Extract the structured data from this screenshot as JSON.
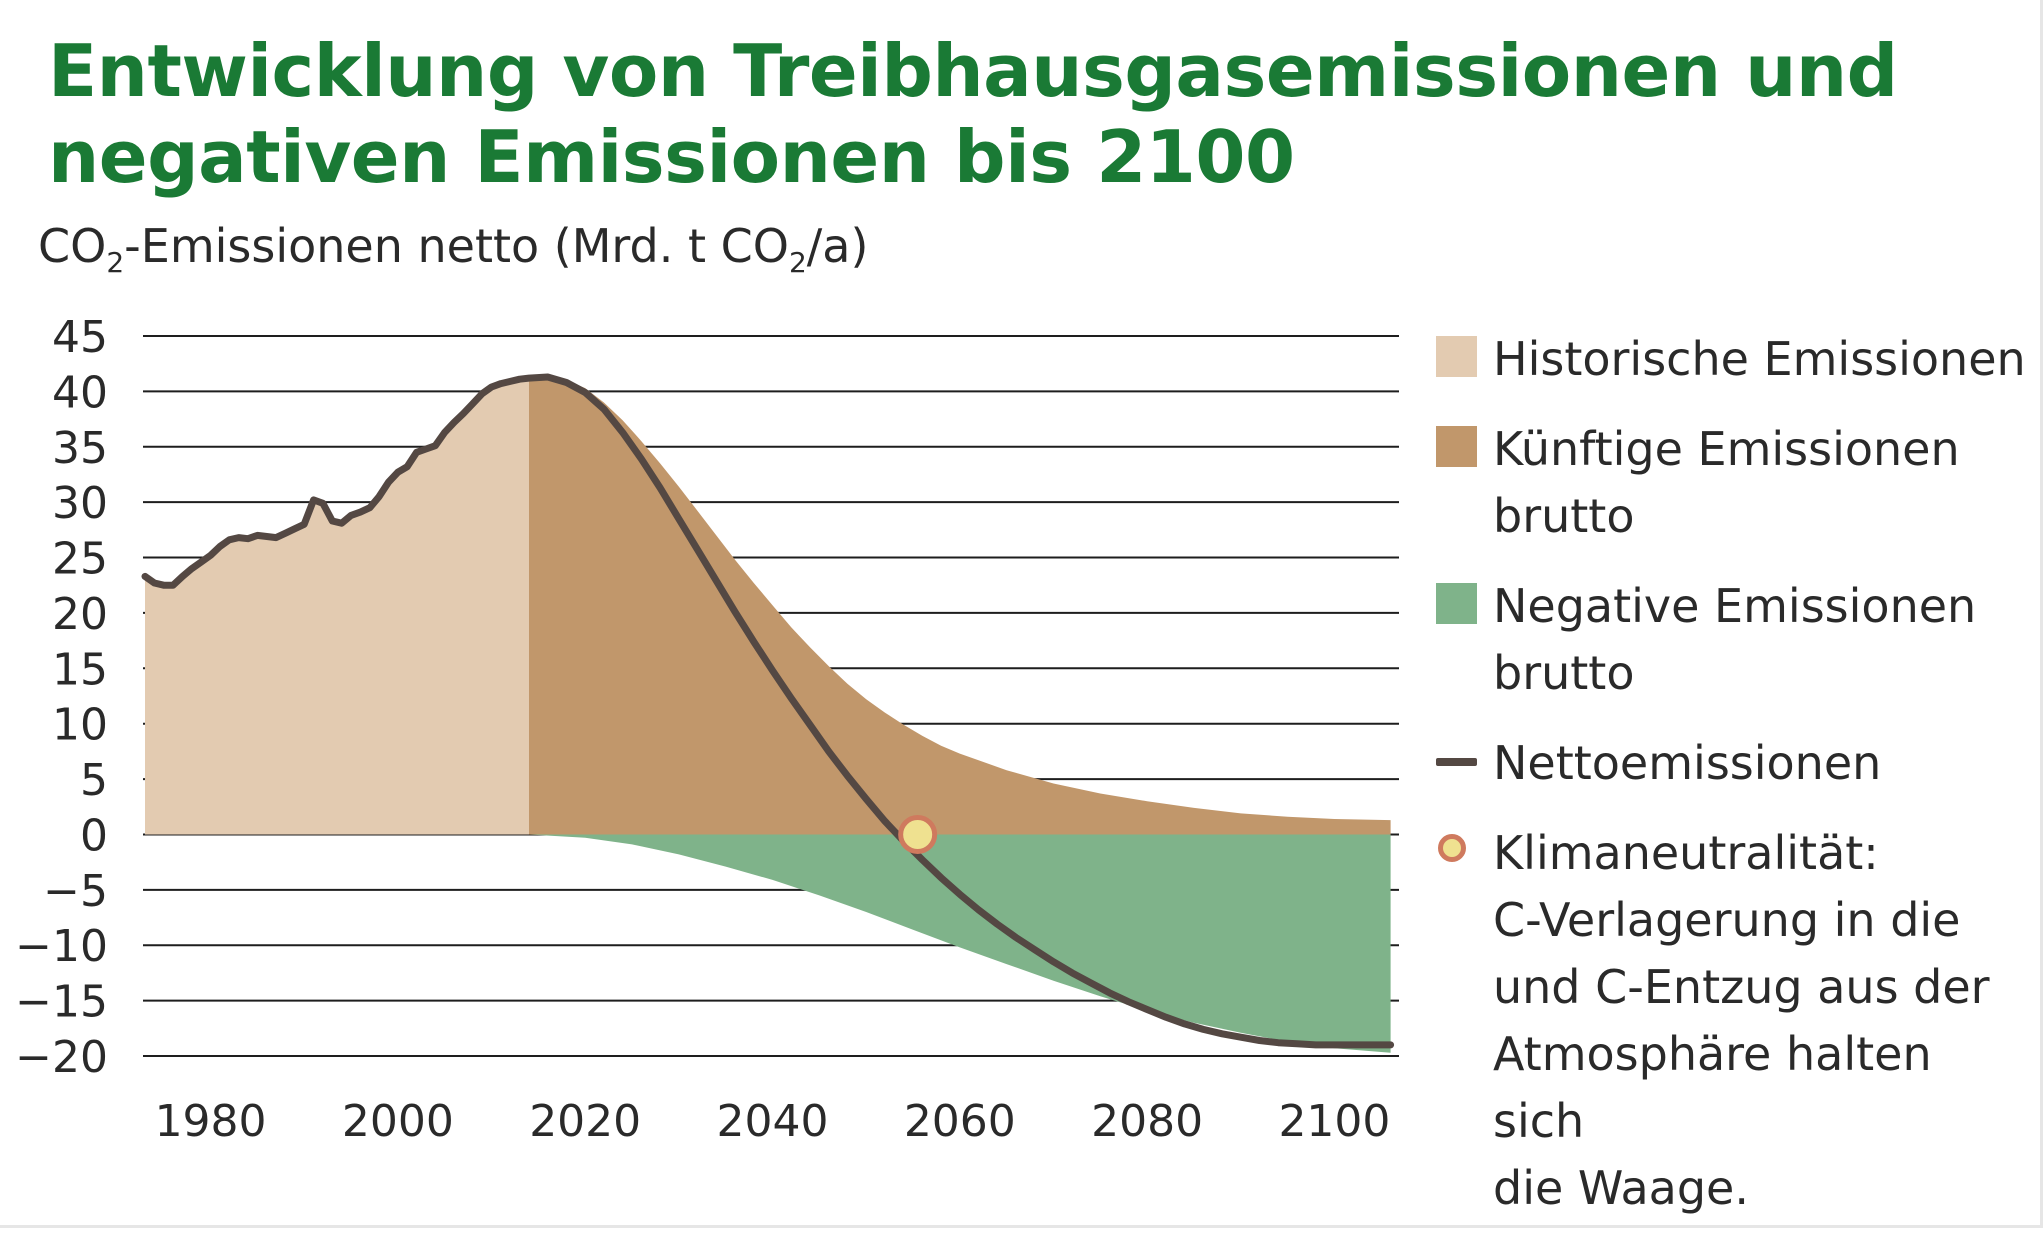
{
  "title": "Entwicklung von Treibhausgasemissionen und negativen Emissionen bis 2100",
  "y_axis_label": {
    "prefix": "CO",
    "sub1": "2",
    "middle": "-Emissionen netto (Mrd. t CO",
    "sub2": "2",
    "suffix": "/a)"
  },
  "legend": [
    {
      "label": "Historische Emissionen",
      "color": "#e3cbb1",
      "kind": "box"
    },
    {
      "label": "Künftige Emissionen\nbrutto",
      "color": "#c1976b",
      "kind": "box"
    },
    {
      "label": "Negative Emissionen\nbrutto",
      "color": "#7fb38a",
      "kind": "box"
    },
    {
      "label": "Nettoemissionen",
      "color": "#544843",
      "kind": "line"
    },
    {
      "label": "Klimaneutralität:\nC-Verlagerung in die\nund C-Entzug aus der\nAtmosphäre halten sich\ndie Waage.",
      "color": "#efe190",
      "kind": "dot"
    }
  ],
  "colors": {
    "title": "#1a7a35",
    "historical": "#e3cbb1",
    "future_gross": "#c1976b",
    "negative_gross": "#7fb38a",
    "net_line": "#544843",
    "neutral_fill": "#efe190",
    "neutral_stroke": "#cf7a5e",
    "grid": "#1e1e1e"
  },
  "chart_data": {
    "type": "area",
    "xlabel": "",
    "ylabel": "CO2-Emissionen netto (Mrd. t CO2/a)",
    "xlim": [
      1973,
      2107
    ],
    "ylim": [
      -20,
      45
    ],
    "x_ticks": [
      1980,
      2000,
      2020,
      2040,
      2060,
      2080,
      2100
    ],
    "y_ticks": [
      45,
      40,
      35,
      30,
      25,
      20,
      15,
      10,
      5,
      0,
      -5,
      -10,
      -15,
      -20
    ],
    "grid": "horizontal",
    "legend_position": "right",
    "historical_end_year": 2014,
    "series": [
      {
        "name": "Historische Emissionen",
        "kind": "area",
        "x": [
          1973,
          1974,
          1975,
          1976,
          1977,
          1978,
          1979,
          1980,
          1981,
          1982,
          1983,
          1984,
          1985,
          1986,
          1987,
          1988,
          1989,
          1990,
          1991,
          1992,
          1993,
          1994,
          1995,
          1996,
          1997,
          1998,
          1999,
          2000,
          2001,
          2002,
          2003,
          2004,
          2005,
          2006,
          2007,
          2008,
          2009,
          2010,
          2011,
          2012,
          2013,
          2014
        ],
        "y": [
          23.3,
          22.7,
          22.5,
          22.5,
          23.3,
          24.0,
          24.6,
          25.2,
          26.0,
          26.6,
          26.8,
          26.7,
          27.0,
          26.9,
          26.8,
          27.2,
          27.6,
          28.0,
          30.2,
          29.9,
          28.3,
          28.1,
          28.8,
          29.1,
          29.5,
          30.5,
          31.8,
          32.7,
          33.2,
          34.5,
          34.8,
          35.1,
          36.3,
          37.2,
          38.0,
          38.9,
          39.8,
          40.4,
          40.7,
          40.9,
          41.1,
          41.2
        ]
      },
      {
        "name": "Künftige Emissionen brutto",
        "kind": "area",
        "x": [
          2014,
          2016,
          2018,
          2020,
          2022,
          2024,
          2026,
          2028,
          2030,
          2032,
          2034,
          2036,
          2038,
          2040,
          2042,
          2044,
          2046,
          2048,
          2050,
          2052,
          2054,
          2056,
          2058,
          2060,
          2065,
          2070,
          2075,
          2080,
          2085,
          2090,
          2095,
          2100,
          2106
        ],
        "y": [
          41.2,
          41.3,
          41.0,
          40.3,
          39.0,
          37.4,
          35.5,
          33.5,
          31.4,
          29.2,
          27.0,
          24.8,
          22.7,
          20.7,
          18.7,
          16.9,
          15.2,
          13.6,
          12.2,
          11.0,
          9.9,
          8.9,
          8.0,
          7.3,
          5.8,
          4.6,
          3.7,
          3.0,
          2.4,
          1.9,
          1.6,
          1.4,
          1.3
        ]
      },
      {
        "name": "Negative Emissionen brutto",
        "kind": "area",
        "x": [
          2014,
          2020,
          2025,
          2030,
          2035,
          2040,
          2045,
          2050,
          2055,
          2060,
          2065,
          2070,
          2075,
          2080,
          2085,
          2090,
          2095,
          2100,
          2106
        ],
        "y": [
          0.0,
          -0.3,
          -0.9,
          -1.8,
          -2.9,
          -4.1,
          -5.5,
          -7.0,
          -8.6,
          -10.2,
          -11.7,
          -13.2,
          -14.6,
          -15.9,
          -17.0,
          -17.9,
          -18.7,
          -19.3,
          -19.7
        ]
      },
      {
        "name": "Nettoemissionen",
        "kind": "line",
        "x": [
          1973,
          1974,
          1975,
          1976,
          1977,
          1978,
          1979,
          1980,
          1981,
          1982,
          1983,
          1984,
          1985,
          1986,
          1987,
          1988,
          1989,
          1990,
          1991,
          1992,
          1993,
          1994,
          1995,
          1996,
          1997,
          1998,
          1999,
          2000,
          2001,
          2002,
          2003,
          2004,
          2005,
          2006,
          2007,
          2008,
          2009,
          2010,
          2011,
          2012,
          2013,
          2014,
          2016,
          2018,
          2020,
          2022,
          2024,
          2026,
          2028,
          2030,
          2032,
          2034,
          2036,
          2038,
          2040,
          2042,
          2044,
          2046,
          2048,
          2050,
          2052,
          2054,
          2056,
          2058,
          2060,
          2062,
          2064,
          2066,
          2068,
          2070,
          2072,
          2074,
          2076,
          2078,
          2080,
          2082,
          2084,
          2086,
          2088,
          2090,
          2092,
          2094,
          2096,
          2098,
          2100,
          2102,
          2104,
          2106
        ],
        "y": [
          23.3,
          22.7,
          22.5,
          22.5,
          23.3,
          24.0,
          24.6,
          25.2,
          26.0,
          26.6,
          26.8,
          26.7,
          27.0,
          26.9,
          26.8,
          27.2,
          27.6,
          28.0,
          30.2,
          29.9,
          28.3,
          28.1,
          28.8,
          29.1,
          29.5,
          30.5,
          31.8,
          32.7,
          33.2,
          34.5,
          34.8,
          35.1,
          36.3,
          37.2,
          38.0,
          38.9,
          39.8,
          40.4,
          40.7,
          40.9,
          41.1,
          41.2,
          41.3,
          40.8,
          39.9,
          38.4,
          36.3,
          33.9,
          31.3,
          28.5,
          25.7,
          22.9,
          20.1,
          17.4,
          14.8,
          12.3,
          9.9,
          7.5,
          5.3,
          3.2,
          1.2,
          -0.6,
          -2.3,
          -3.9,
          -5.4,
          -6.8,
          -8.1,
          -9.3,
          -10.4,
          -11.5,
          -12.5,
          -13.4,
          -14.3,
          -15.1,
          -15.8,
          -16.5,
          -17.1,
          -17.6,
          -18.0,
          -18.3,
          -18.6,
          -18.8,
          -18.9,
          -19.0,
          -19.0,
          -19.0,
          -19.0,
          -19.0
        ]
      }
    ],
    "markers": [
      {
        "name": "Klimaneutralität",
        "x": 2055.5,
        "y": 0
      }
    ]
  }
}
